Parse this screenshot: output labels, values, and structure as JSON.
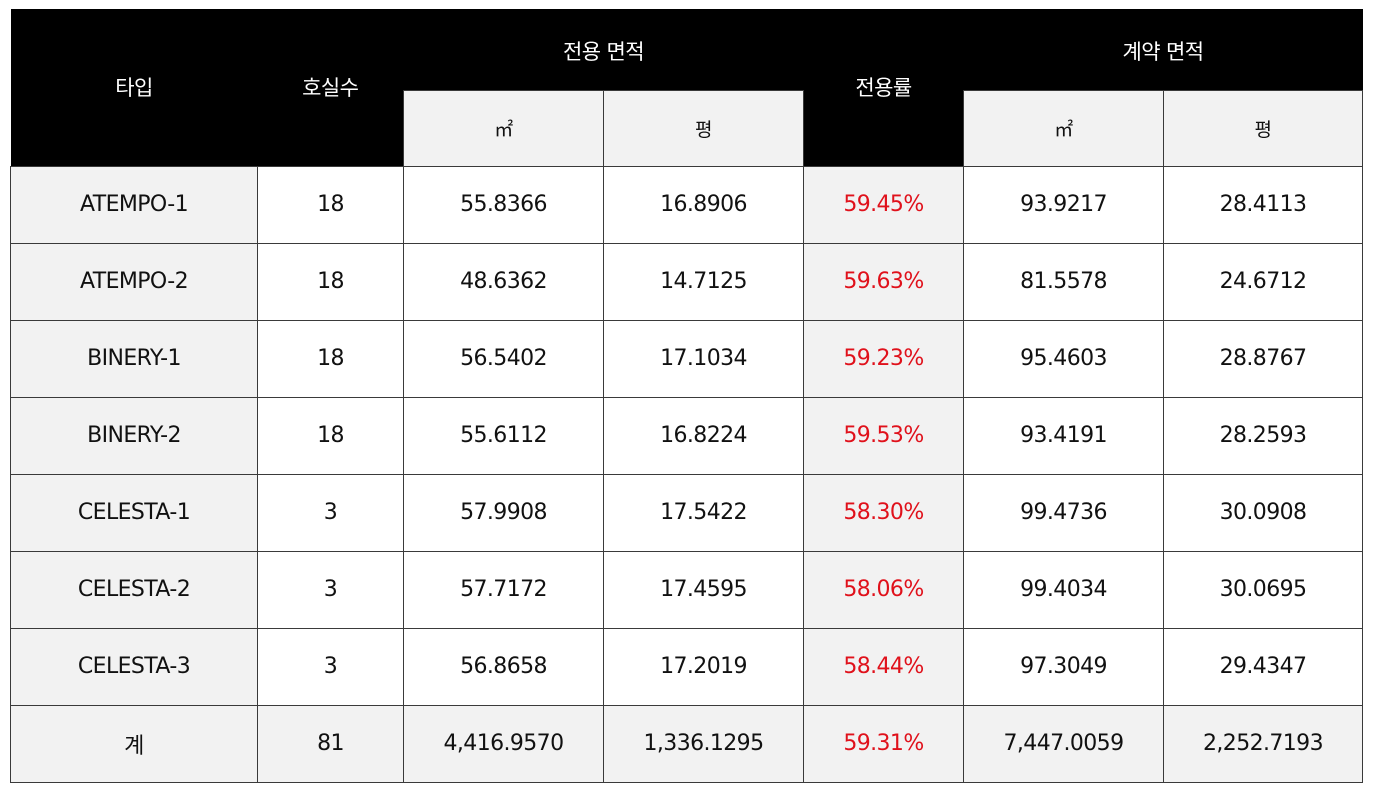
{
  "header": {
    "type": "타입",
    "rooms": "호실수",
    "exclusive_area": "전용 면적",
    "exclusive_ratio": "전용률",
    "contract_area": "계약 면적",
    "unit_m2": "㎡",
    "unit_pyeong": "평"
  },
  "rows": [
    {
      "type": "ATEMPO-1",
      "rooms": "18",
      "ex_m2": "55.8366",
      "ex_py": "16.8906",
      "ratio": "59.45%",
      "ct_m2": "93.9217",
      "ct_py": "28.4113"
    },
    {
      "type": "ATEMPO-2",
      "rooms": "18",
      "ex_m2": "48.6362",
      "ex_py": "14.7125",
      "ratio": "59.63%",
      "ct_m2": "81.5578",
      "ct_py": "24.6712"
    },
    {
      "type": "BINERY-1",
      "rooms": "18",
      "ex_m2": "56.5402",
      "ex_py": "17.1034",
      "ratio": "59.23%",
      "ct_m2": "95.4603",
      "ct_py": "28.8767"
    },
    {
      "type": "BINERY-2",
      "rooms": "18",
      "ex_m2": "55.6112",
      "ex_py": "16.8224",
      "ratio": "59.53%",
      "ct_m2": "93.4191",
      "ct_py": "28.2593"
    },
    {
      "type": "CELESTA-1",
      "rooms": "3",
      "ex_m2": "57.9908",
      "ex_py": "17.5422",
      "ratio": "58.30%",
      "ct_m2": "99.4736",
      "ct_py": "30.0908"
    },
    {
      "type": "CELESTA-2",
      "rooms": "3",
      "ex_m2": "57.7172",
      "ex_py": "17.4595",
      "ratio": "58.06%",
      "ct_m2": "99.4034",
      "ct_py": "30.0695"
    },
    {
      "type": "CELESTA-3",
      "rooms": "3",
      "ex_m2": "56.8658",
      "ex_py": "17.2019",
      "ratio": "58.44%",
      "ct_m2": "97.3049",
      "ct_py": "29.4347"
    }
  ],
  "total": {
    "type": "계",
    "rooms": "81",
    "ex_m2": "4,416.9570",
    "ex_py": "1,336.1295",
    "ratio": "59.31%",
    "ct_m2": "7,447.0059",
    "ct_py": "2,252.7193"
  },
  "colors": {
    "header_bg": "#000000",
    "ratio_text": "#e0111b",
    "shaded_cell": "#f2f2f2"
  }
}
